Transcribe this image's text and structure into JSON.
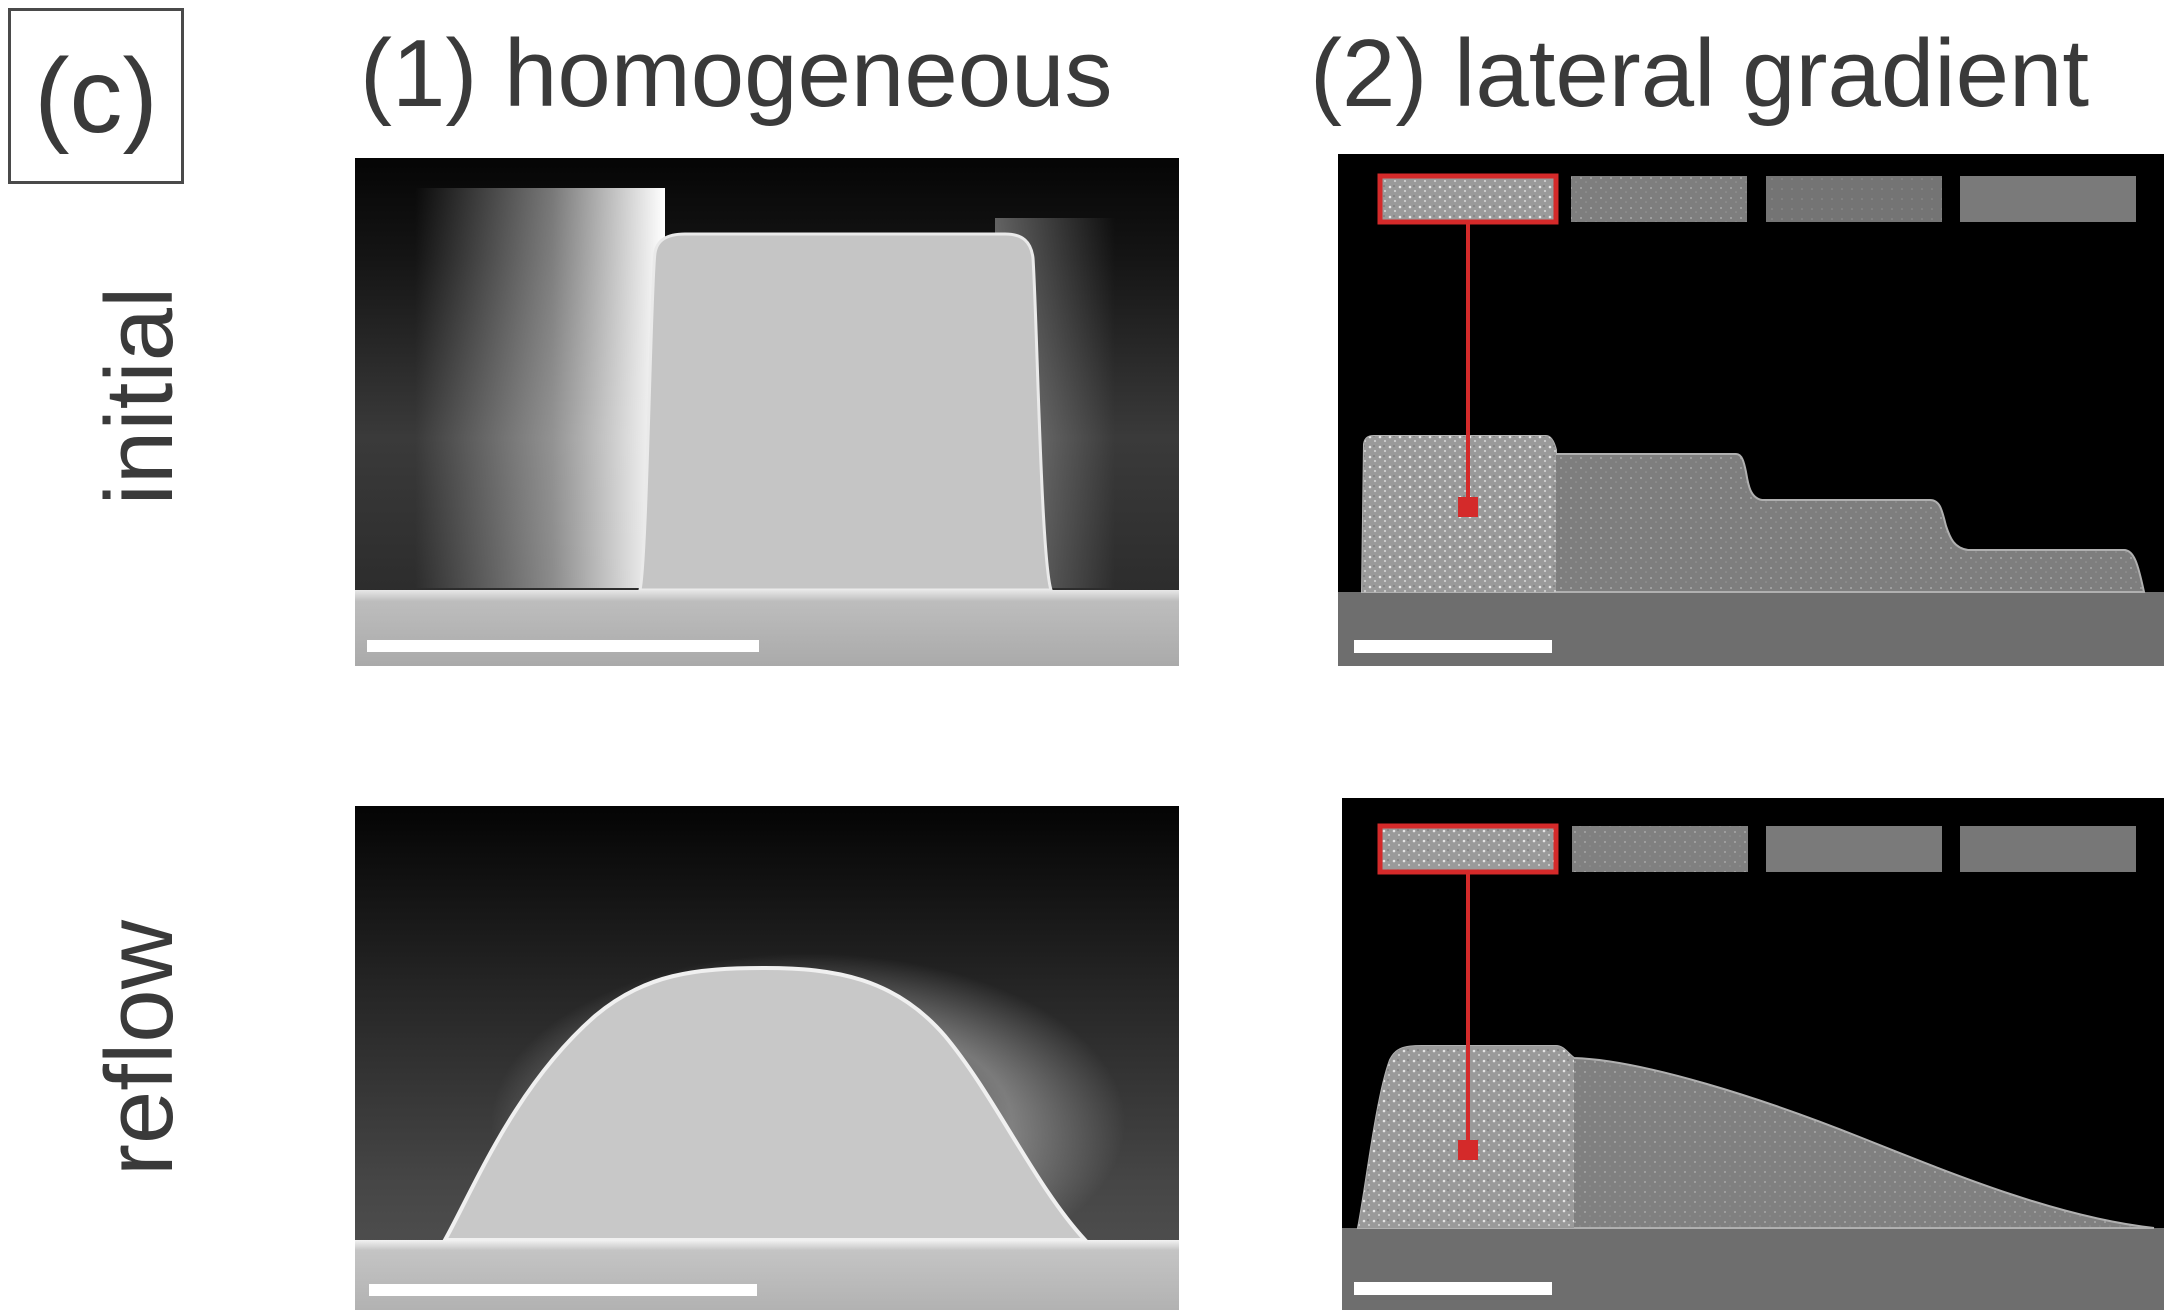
{
  "panel_label": "(c)",
  "columns": [
    {
      "title": "(1) homogeneous"
    },
    {
      "title": "(2) lateral gradient"
    }
  ],
  "rows": [
    {
      "label": "initial"
    },
    {
      "label": "reflow"
    }
  ]
}
